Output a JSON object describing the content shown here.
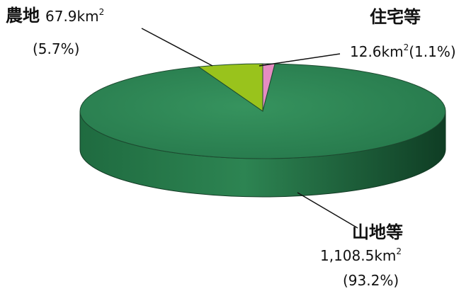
{
  "chart_data": {
    "type": "pie",
    "style": "3d",
    "unit": "km",
    "slices": [
      {
        "name": "山地等",
        "value": 1108.5,
        "value_label": "1,108.5",
        "percent_label": "(93.2%)",
        "color": "#2f8a57"
      },
      {
        "name": "農地",
        "value": 67.9,
        "value_label": "67.9",
        "percent_label": "(5.7%)",
        "color": "#99c31c"
      },
      {
        "name": "住宅等",
        "value": 12.6,
        "value_label": "12.6",
        "percent_label": "(1.1%)",
        "color": "#e58cc2"
      }
    ]
  }
}
